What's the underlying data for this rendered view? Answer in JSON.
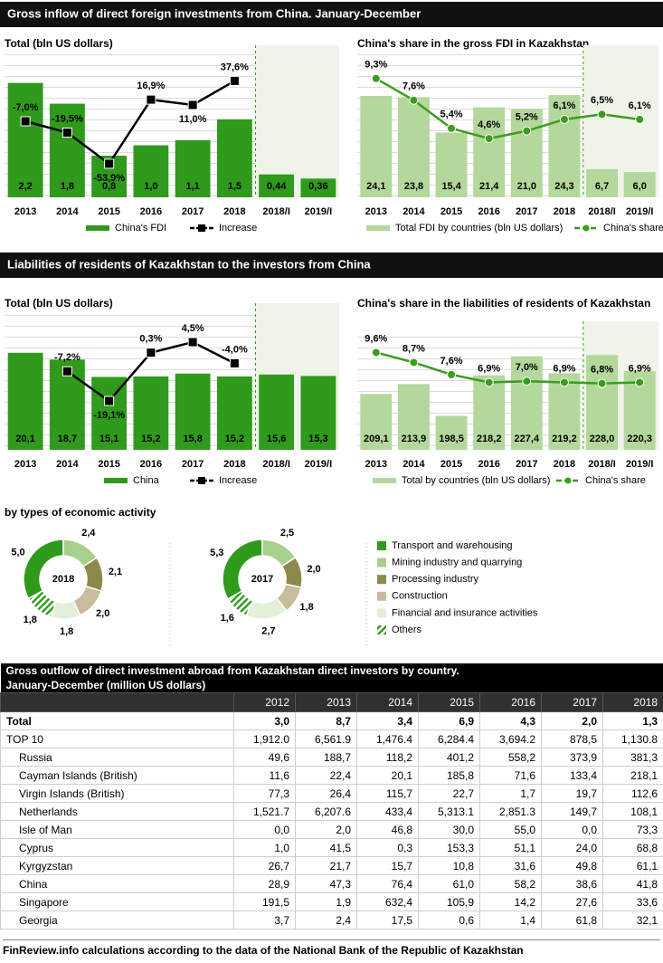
{
  "sections": [
    "Gross  inflow of direct foreign investments from China. January-December",
    "Liabilities of residents of Kazakhstan to the investors from China",
    "by types of economic activity"
  ],
  "chart_data": [
    {
      "type": "bar",
      "title": "Total (bln US dollars)",
      "categories": [
        "2013",
        "2014",
        "2015",
        "2016",
        "2017",
        "2018",
        "2018/I",
        "2019/I"
      ],
      "series": [
        {
          "name": "China's FDI",
          "type": "bar",
          "color": "#2f9a1b",
          "values": [
            2.2,
            1.8,
            0.8,
            1.0,
            1.1,
            1.5,
            0.44,
            0.36
          ],
          "value_labels": [
            "2,2",
            "1,8",
            "0,8",
            "1,0",
            "1,1",
            "1,5",
            "0,44",
            "0,36"
          ]
        },
        {
          "name": "Increase",
          "type": "line",
          "axis": "y2",
          "color": "#000000",
          "marker": "square",
          "values": [
            -7.0,
            -19.5,
            -53.9,
            16.9,
            11.0,
            37.6,
            null,
            null
          ],
          "value_labels": [
            "-7,0%",
            "-19,5%",
            "-53,9%",
            "16,9%",
            "11,0%",
            "37,6%",
            null,
            null
          ]
        }
      ],
      "ylim": [
        0,
        2.75
      ],
      "y2lim": [
        -91,
        67
      ]
    },
    {
      "type": "bar",
      "title": "China's share in the gross FDI  in Kazakhstan",
      "categories": [
        "2013",
        "2014",
        "2015",
        "2016",
        "2017",
        "2018",
        "2018/I",
        "2019/I"
      ],
      "series": [
        {
          "name": "Total FDI by countries (bln US dollars)",
          "type": "bar",
          "color": "#b4d89c",
          "values": [
            24.1,
            23.8,
            15.4,
            21.4,
            21.0,
            24.3,
            6.7,
            6.0
          ],
          "value_labels": [
            "24,1",
            "23,8",
            "15,4",
            "21,4",
            "21,0",
            "24,3",
            "6,7",
            "6,0"
          ]
        },
        {
          "name": "China's share",
          "type": "line",
          "axis": "y2",
          "color": "#3c9c1e",
          "marker": "circle",
          "values": [
            9.3,
            7.6,
            5.4,
            4.6,
            5.2,
            6.1,
            6.5,
            6.1
          ],
          "value_labels": [
            "9,3%",
            "7,6%",
            "5,4%",
            "4,6%",
            "5,2%",
            "6,1%",
            "6,5%",
            "6,1%"
          ]
        }
      ],
      "ylim": [
        0,
        34
      ],
      "y2lim": [
        0,
        11.2
      ]
    },
    {
      "type": "bar",
      "title": "Total (bln US dollars)",
      "categories": [
        "2013",
        "2014",
        "2015",
        "2016",
        "2017",
        "2018",
        "2018/I",
        "2019/I"
      ],
      "series": [
        {
          "name": "China",
          "type": "bar",
          "color": "#2f9a1b",
          "values": [
            20.1,
            18.7,
            15.1,
            15.2,
            15.8,
            15.2,
            15.6,
            15.3
          ],
          "value_labels": [
            "20,1",
            "18,7",
            "15,1",
            "15,2",
            "15,8",
            "15,2",
            "15,6",
            "15,3"
          ]
        },
        {
          "name": "Increase",
          "type": "line",
          "axis": "y2",
          "color": "#000000",
          "marker": "square",
          "values": [
            null,
            -7.2,
            -19.1,
            0.3,
            4.5,
            -4.0,
            null,
            null
          ],
          "value_labels": [
            null,
            "-7,2%",
            "-19,1%",
            "0,3%",
            "4,5%",
            "-4,0%",
            null,
            null
          ]
        }
      ],
      "ylim": [
        0,
        28.5
      ],
      "y2lim": [
        -38.7,
        16.5
      ]
    },
    {
      "type": "bar",
      "title": "China's share in the liabilities  of residents of Kazakhstan",
      "categories": [
        "2013",
        "2014",
        "2015",
        "2016",
        "2017",
        "2018",
        "2018/I",
        "2019/I"
      ],
      "series": [
        {
          "name": "Total by countries (bln US dollars)",
          "type": "bar",
          "color": "#b4d89c",
          "values": [
            209.1,
            213.9,
            198.5,
            218.2,
            227.4,
            219.2,
            228.0,
            220.3
          ],
          "value_labels": [
            "209,1",
            "213,9",
            "198,5",
            "218,2",
            "227,4",
            "219,2",
            "228,0",
            "220,3"
          ]
        },
        {
          "name": "China's share",
          "type": "line",
          "axis": "y2",
          "color": "#3c9c1e",
          "marker": "circle",
          "values": [
            9.6,
            8.7,
            7.6,
            6.9,
            7.0,
            6.9,
            6.8,
            6.9
          ],
          "value_labels": [
            "9,6%",
            "8,7%",
            "7,6%",
            "6,9%",
            "7,0%",
            "6,9%",
            "6,8%",
            "6,9%"
          ]
        }
      ],
      "ylim": [
        182,
        240
      ],
      "y2lim": [
        0.8,
        11.6
      ]
    },
    {
      "type": "donut",
      "title": "2018",
      "categories": [
        "Transport and warehousing",
        "Mining industry and quarrying",
        "Processing industry",
        "Construction",
        "Financial and insurance activities",
        "Others"
      ],
      "values": [
        5.0,
        2.4,
        2.1,
        2.0,
        1.8,
        1.8
      ],
      "value_labels": [
        "5,0",
        "2,4",
        "2,1",
        "2,0",
        "1,8",
        "1,8"
      ],
      "colors": [
        "#2f9a1b",
        "#a8d08d",
        "#8c8a4a",
        "#c8bc9c",
        "#e3efd9",
        "hatch"
      ]
    },
    {
      "type": "donut",
      "title": "2017",
      "values": [
        5.3,
        2.5,
        2.0,
        1.8,
        2.7,
        1.6
      ],
      "value_labels": [
        "5,3",
        "2,5",
        "2,0",
        "1,8",
        "2,7",
        "1,6"
      ],
      "colors": [
        "#2f9a1b",
        "#a8d08d",
        "#8c8a4a",
        "#c8bc9c",
        "#e3efd9",
        "hatch"
      ]
    }
  ],
  "table": {
    "title": [
      "Gross outflow of direct investment abroad from Kazakhstan direct investors by country.",
      "January-December (million US dollars)"
    ],
    "columns": [
      "2012",
      "2013",
      "2014",
      "2015",
      "2016",
      "2017",
      "2018"
    ],
    "rows": [
      [
        "Total",
        "3,0",
        "8,7",
        "3,4",
        "6,9",
        "4,3",
        "2,0",
        "1,3"
      ],
      [
        "TOP 10",
        "1,912.0",
        "6,561.9",
        "1,476.4",
        "6,284.4",
        "3,694.2",
        "878,5",
        "1,130.8"
      ],
      [
        "Russia",
        "49,6",
        "188,7",
        "118,2",
        "401,2",
        "558,2",
        "373,9",
        "381,3"
      ],
      [
        "Cayman Islands (British)",
        "11,6",
        "22,4",
        "20,1",
        "185,8",
        "71,6",
        "133,4",
        "218,1"
      ],
      [
        "Virgin Islands (British)",
        "77,3",
        "26,4",
        "115,7",
        "22,7",
        "1,7",
        "19,7",
        "112,6"
      ],
      [
        "Netherlands",
        "1,521.7",
        "6,207.6",
        "433,4",
        "5,313.1",
        "2,851.3",
        "149,7",
        "108,1"
      ],
      [
        "Isle of Man",
        "0,0",
        "2,0",
        "46,8",
        "30,0",
        "55,0",
        "0,0",
        "73,3"
      ],
      [
        "Cyprus",
        "1,0",
        "41,5",
        "0,3",
        "153,3",
        "51,1",
        "24,0",
        "68,8"
      ],
      [
        "Kyrgyzstan",
        "26,7",
        "21,7",
        "15,7",
        "10,8",
        "31,6",
        "49,8",
        "61,1"
      ],
      [
        "China",
        "28,9",
        "47,3",
        "76,4",
        "61,0",
        "58,2",
        "38,6",
        "41,8"
      ],
      [
        "Singapore",
        "191,5",
        "1,9",
        "632,4",
        "105,9",
        "14,2",
        "27,6",
        "33,6"
      ],
      [
        "Georgia",
        "3,7",
        "2,4",
        "17,5",
        "0,6",
        "1,4",
        "61,8",
        "32,1"
      ]
    ]
  },
  "footer": "FinReview.info  calculations according to the data of the National Bank of the Republic of Kazakhstan"
}
